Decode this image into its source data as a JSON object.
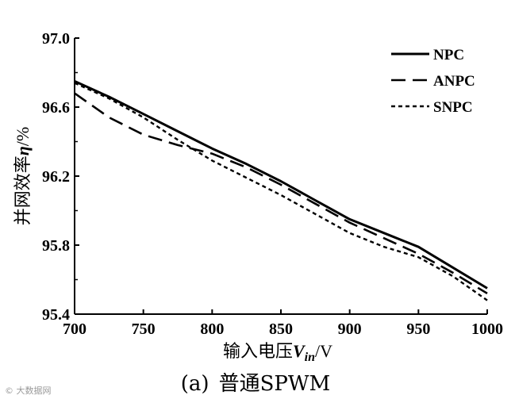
{
  "chart_data": {
    "type": "line",
    "xlabel": {
      "prefix": "输入电压",
      "var": "V",
      "sub": "in",
      "suffix": "/V"
    },
    "ylabel": {
      "prefix": "并网效率",
      "var": "η",
      "suffix": "/%"
    },
    "xlim": [
      700,
      1000
    ],
    "ylim": [
      95.4,
      97.0
    ],
    "xticks": [
      "700",
      "750",
      "800",
      "850",
      "900",
      "950",
      "1000"
    ],
    "yticks": [
      "95.4",
      "95.8",
      "96.2",
      "96.6",
      "97.0"
    ],
    "legend_position": "top-right",
    "x": [
      700,
      725,
      750,
      775,
      800,
      825,
      850,
      875,
      900,
      925,
      950,
      975,
      1000
    ],
    "series": [
      {
        "name": "NPC",
        "style": "solid",
        "values": [
          96.75,
          96.66,
          96.56,
          96.46,
          96.36,
          96.27,
          96.17,
          96.06,
          95.95,
          95.87,
          95.79,
          95.67,
          95.55
        ]
      },
      {
        "name": "ANPC",
        "style": "dashed",
        "values": [
          96.68,
          96.54,
          96.44,
          96.38,
          96.33,
          96.25,
          96.15,
          96.04,
          95.93,
          95.84,
          95.75,
          95.64,
          95.52
        ]
      },
      {
        "name": "SNPC",
        "style": "dotted",
        "values": [
          96.74,
          96.65,
          96.54,
          96.41,
          96.29,
          96.19,
          96.09,
          95.98,
          95.87,
          95.79,
          95.73,
          95.62,
          95.48
        ]
      }
    ]
  },
  "caption": {
    "prefix": "(a)",
    "text": "普通SPWM"
  },
  "watermark": "© 大数据网"
}
